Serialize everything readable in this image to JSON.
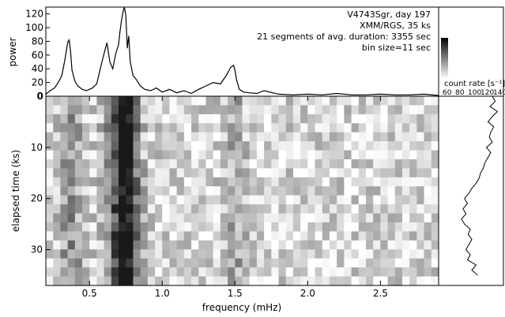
{
  "chart_data": [
    {
      "type": "line",
      "panel": "power-spectrum",
      "xlabel": "",
      "ylabel": "power",
      "xlim": [
        0.2,
        2.9
      ],
      "ylim": [
        0,
        130
      ],
      "yticks": [
        0,
        20,
        40,
        60,
        80,
        100,
        120
      ],
      "annotation": [
        "V4743Sgr, day 197",
        "XMM/RGS, 35 ks",
        "21 segments of avg. duration: 3355 sec",
        "bin size=11 sec"
      ],
      "x": [
        0.2,
        0.23,
        0.26,
        0.29,
        0.31,
        0.33,
        0.35,
        0.36,
        0.37,
        0.38,
        0.4,
        0.42,
        0.45,
        0.48,
        0.52,
        0.55,
        0.58,
        0.6,
        0.62,
        0.64,
        0.66,
        0.68,
        0.7,
        0.71,
        0.72,
        0.73,
        0.74,
        0.75,
        0.76,
        0.77,
        0.78,
        0.8,
        0.82,
        0.85,
        0.88,
        0.92,
        0.96,
        1.0,
        1.05,
        1.1,
        1.15,
        1.2,
        1.25,
        1.3,
        1.35,
        1.4,
        1.44,
        1.47,
        1.49,
        1.5,
        1.51,
        1.53,
        1.56,
        1.6,
        1.65,
        1.7,
        1.8,
        1.9,
        2.0,
        2.1,
        2.2,
        2.3,
        2.4,
        2.5,
        2.6,
        2.7,
        2.8,
        2.9
      ],
      "y": [
        3,
        8,
        12,
        22,
        30,
        52,
        78,
        82,
        65,
        38,
        22,
        15,
        10,
        8,
        12,
        18,
        45,
        62,
        78,
        50,
        40,
        62,
        75,
        95,
        110,
        123,
        132,
        118,
        70,
        88,
        50,
        30,
        25,
        15,
        10,
        8,
        12,
        6,
        10,
        5,
        8,
        4,
        10,
        15,
        20,
        18,
        30,
        42,
        45,
        38,
        25,
        10,
        6,
        5,
        4,
        8,
        3,
        2,
        3,
        2,
        4,
        2,
        2,
        3,
        2,
        2,
        3,
        1
      ],
      "series_name": ""
    },
    {
      "type": "heatmap",
      "panel": "dynamic-spectrum",
      "xlabel": "frequency (mHz)",
      "ylabel": "elapsed time (ks)",
      "xlim": [
        0.2,
        2.9
      ],
      "ylim": [
        37,
        0
      ],
      "xticks": [
        0.5,
        1.0,
        1.5,
        2.0,
        2.5
      ],
      "xtick_labels": [
        "0.5",
        "1.0",
        "1.5",
        "2.0",
        "2.5"
      ],
      "yticks": [
        0,
        10,
        20,
        30
      ],
      "rows": 21,
      "colorbar": "grayscale, dark = high power"
    },
    {
      "type": "line",
      "panel": "light-curve",
      "xlabel": "count rate [s⁻¹]",
      "ylabel": "",
      "xtick_labels": [
        "60",
        "80",
        "100",
        "120",
        "140"
      ],
      "ylim": [
        37,
        0
      ],
      "t": [
        0,
        1,
        2,
        3,
        4,
        5,
        6,
        7,
        8,
        9,
        10,
        11,
        12,
        13,
        14,
        15,
        16,
        17,
        18,
        19,
        20,
        21,
        22,
        23,
        24,
        25,
        26,
        27,
        28,
        29,
        30,
        31,
        32,
        33,
        34,
        35
      ],
      "rate": [
        128,
        132,
        125,
        135,
        128,
        122,
        130,
        126,
        124,
        128,
        120,
        126,
        122,
        118,
        116,
        112,
        110,
        106,
        100,
        96,
        90,
        94,
        88,
        92,
        86,
        90,
        98,
        95,
        100,
        96,
        92,
        98,
        94,
        106,
        100,
        108
      ]
    }
  ]
}
